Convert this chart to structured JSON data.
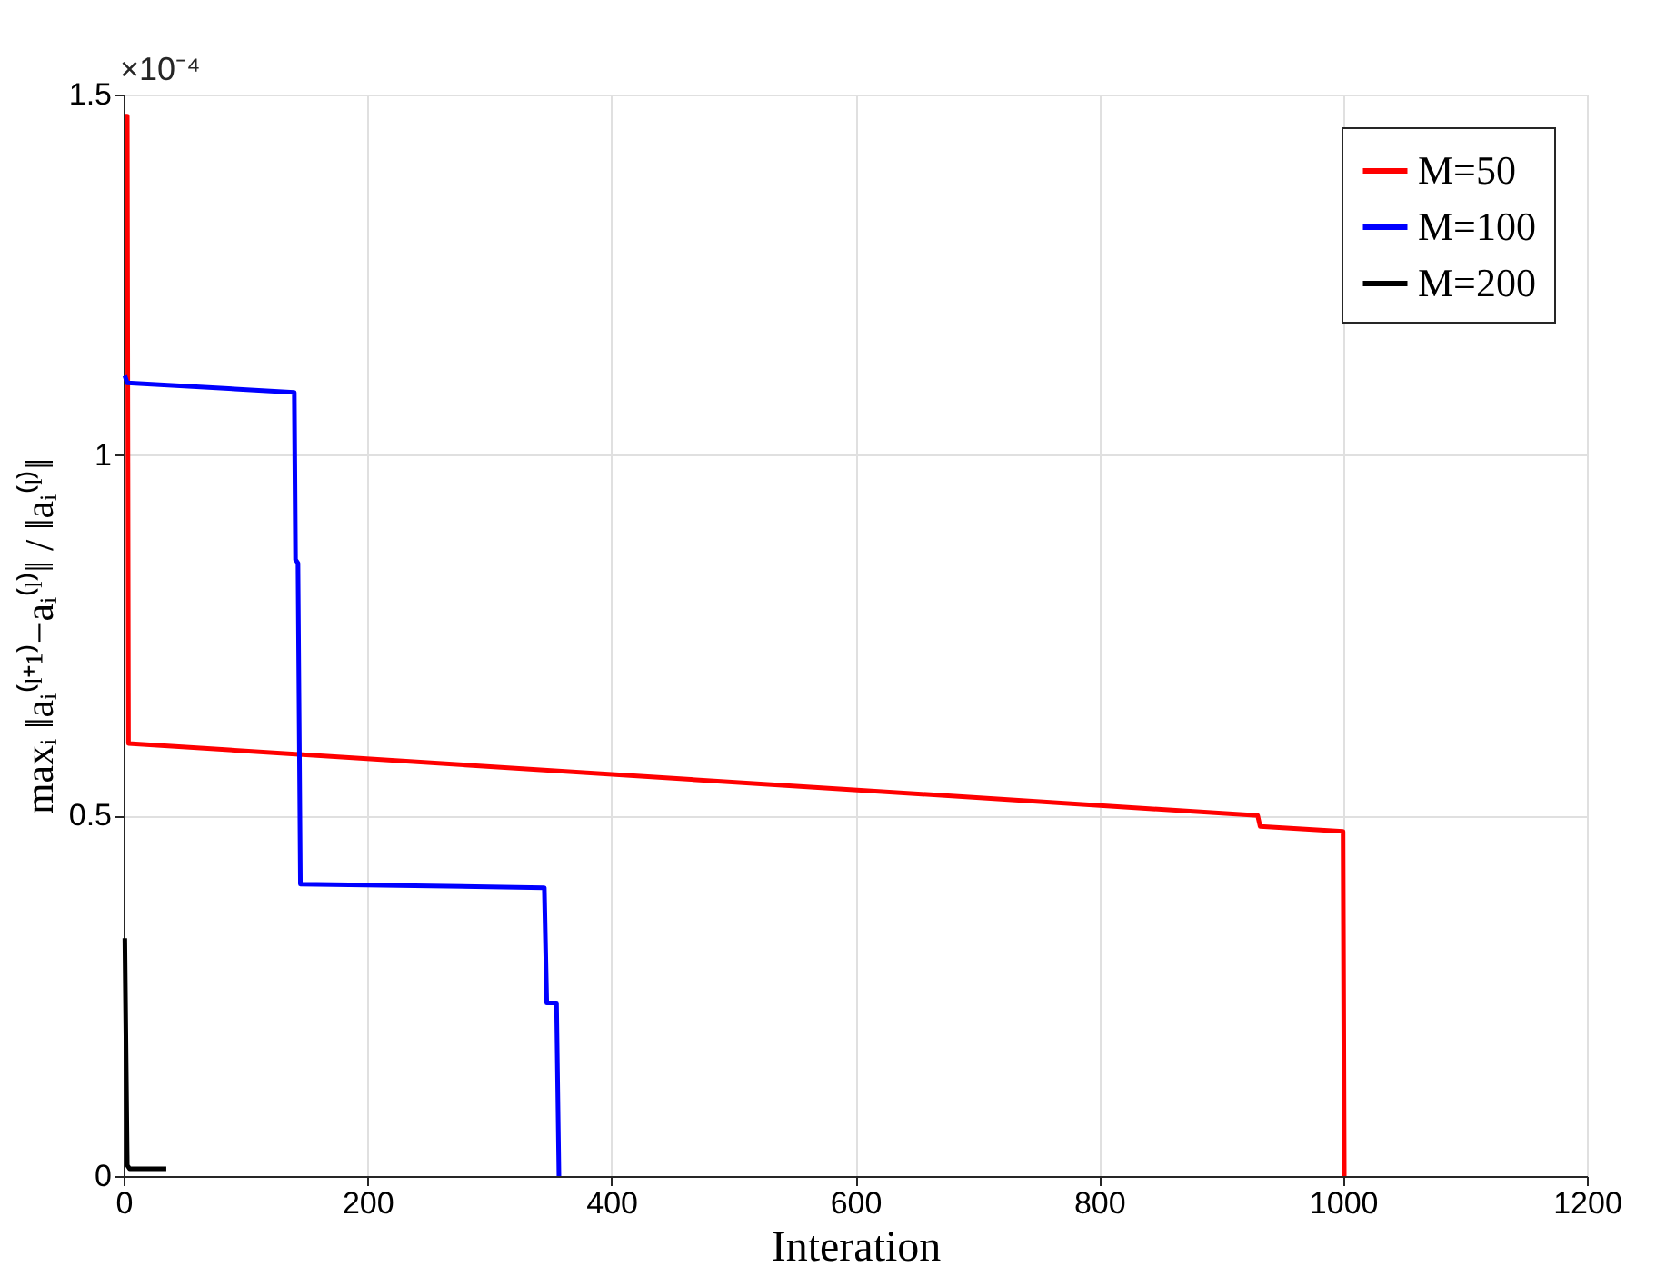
{
  "chart_data": {
    "type": "line",
    "xlabel": "Interation",
    "ylabel": "maxᵢ ‖aᵢ⁽ˡ⁺¹⁾−aᵢ⁽ˡ⁾‖ / ‖aᵢ⁽ˡ⁾‖",
    "annotations": [
      "×10⁻⁴"
    ],
    "series": [
      {
        "name": "M=50",
        "color": "#ff0000",
        "x": [
          1,
          3,
          4,
          930,
          932,
          1000,
          1001
        ],
        "values": [
          1.47,
          1.47,
          0.6,
          0.5,
          0.485,
          0.478,
          0
        ]
      },
      {
        "name": "M=100",
        "color": "#0000ff",
        "x": [
          1,
          3,
          140,
          141,
          143,
          145,
          345,
          347,
          355,
          357
        ],
        "values": [
          1.11,
          1.1,
          1.087,
          0.855,
          0.85,
          0.405,
          0.4,
          0.24,
          0.24,
          0
        ]
      },
      {
        "name": "M=200",
        "color": "#000000",
        "x": [
          1,
          3,
          5,
          35
        ],
        "values": [
          0.33,
          0.015,
          0.01,
          0.01
        ]
      }
    ],
    "xlim": [
      0,
      1200
    ],
    "xticks": [
      0,
      200,
      400,
      600,
      800,
      1000,
      1200
    ],
    "ylim": [
      0,
      1.5
    ],
    "yticks": [
      0,
      0.5,
      1,
      1.5
    ],
    "grid": true,
    "legend": "top right",
    "line_style": "solid",
    "marker": "none"
  }
}
